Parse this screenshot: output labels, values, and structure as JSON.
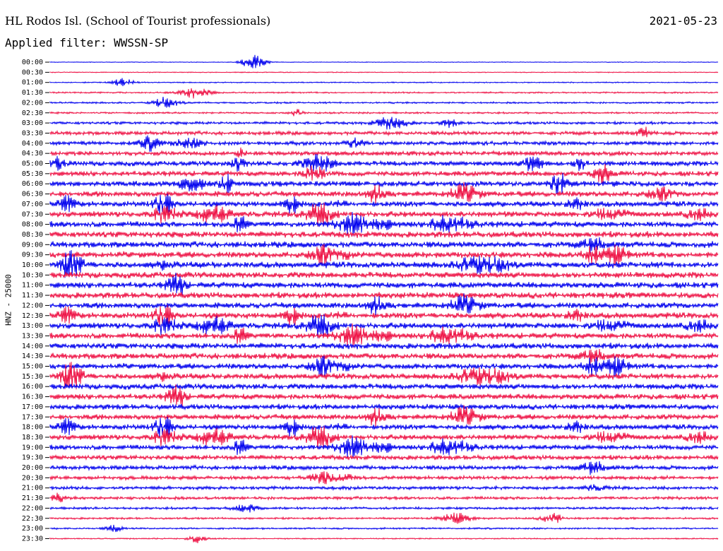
{
  "header": {
    "station": "HL Rodos Isl. (School of Tourist professionals)",
    "date": "2021-05-23",
    "filter": "Applied filter: WWSSN-SP"
  },
  "chart_data": {
    "type": "line",
    "title": "HL Rodos Isl. (School of Tourist professionals)",
    "ylabel": "HNZ - 25000",
    "row_labels": [
      "00:00",
      "00:30",
      "01:00",
      "01:30",
      "02:00",
      "02:30",
      "03:00",
      "03:30",
      "04:00",
      "04:30",
      "05:00",
      "05:30",
      "06:00",
      "06:30",
      "07:00",
      "07:30",
      "08:00",
      "08:30",
      "09:00",
      "09:30",
      "10:00",
      "10:30",
      "11:00",
      "11:30",
      "12:00",
      "12:30",
      "13:00",
      "13:30",
      "14:00",
      "14:30",
      "15:00",
      "15:30",
      "16:00",
      "16:30",
      "17:00",
      "17:30",
      "18:00",
      "18:30",
      "19:00",
      "19:30",
      "20:00",
      "20:30",
      "21:00",
      "21:30",
      "22:00",
      "22:30",
      "23:00",
      "23:30"
    ],
    "colors": [
      "#0000ee",
      "#ee1144"
    ],
    "noise_level": [
      0.5,
      0.7,
      0.9,
      1.2,
      1.4,
      1.5,
      2.2,
      3.0,
      3.2,
      3.6,
      4.0,
      4.2,
      4.4,
      4.6,
      4.4,
      4.6,
      4.8,
      5.0,
      5.0,
      5.0,
      5.0,
      5.0,
      5.0,
      5.0,
      4.8,
      4.8,
      4.8,
      4.8,
      4.8,
      4.8,
      4.6,
      4.6,
      4.6,
      4.6,
      4.4,
      4.4,
      4.2,
      4.2,
      4.0,
      3.8,
      3.4,
      3.0,
      2.6,
      2.4,
      2.0,
      1.6,
      1.4,
      1.0
    ]
  }
}
